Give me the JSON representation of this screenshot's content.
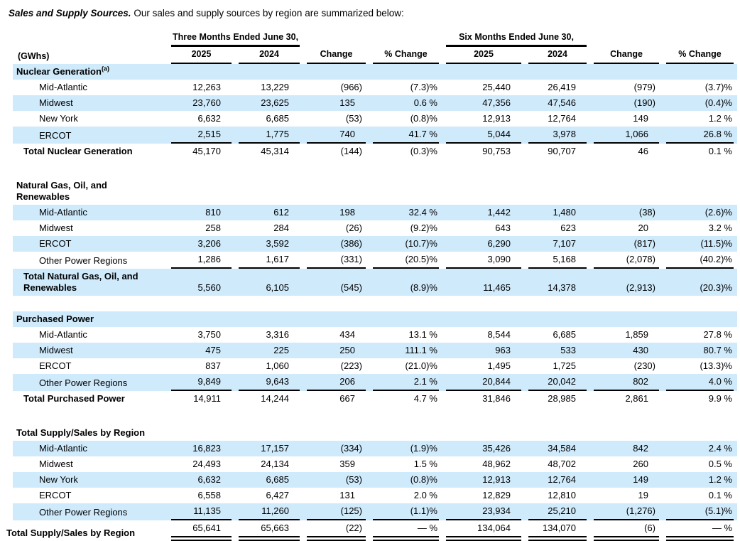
{
  "colors": {
    "stripe": "#cfeafb",
    "text": "#000000",
    "rule": "#000000"
  },
  "intro": {
    "lead": "Sales and Supply Sources.",
    "rest": " Our sales and supply sources by region are summarized below:"
  },
  "table": {
    "unit_label": "(GWhs)",
    "group_headers": [
      "Three Months Ended June 30,",
      "Six Months Ended June 30,"
    ],
    "col_headers": [
      "2025",
      "2024",
      "Change",
      "% Change",
      "2025",
      "2024",
      "Change",
      "% Change"
    ],
    "sections": [
      {
        "title": "Nuclear Generation",
        "title_sup": "(a)",
        "header_shaded": true,
        "rows": [
          {
            "label": "Mid-Atlantic",
            "shaded": false,
            "values": [
              "12,263",
              "13,229",
              "(966)",
              "(7.3)%",
              "25,440",
              "26,419",
              "(979)",
              "(3.7)%"
            ]
          },
          {
            "label": "Midwest",
            "shaded": true,
            "values": [
              "23,760",
              "23,625",
              "135",
              "0.6 %",
              "47,356",
              "47,546",
              "(190)",
              "(0.4)%"
            ]
          },
          {
            "label": "New York",
            "shaded": false,
            "values": [
              "6,632",
              "6,685",
              "(53)",
              "(0.8)%",
              "12,913",
              "12,764",
              "149",
              "1.2 %"
            ]
          },
          {
            "label": "ERCOT",
            "shaded": true,
            "values": [
              "2,515",
              "1,775",
              "740",
              "41.7 %",
              "5,044",
              "3,978",
              "1,066",
              "26.8 %"
            ]
          }
        ],
        "total": {
          "label": "Total Nuclear Generation",
          "shaded": false,
          "values": [
            "45,170",
            "45,314",
            "(144)",
            "(0.3)%",
            "90,753",
            "90,707",
            "46",
            "0.1 %"
          ]
        }
      },
      {
        "title": "Natural Gas, Oil, and\nRenewables",
        "title_sup": "",
        "header_shaded": false,
        "rows": [
          {
            "label": "Mid-Atlantic",
            "shaded": true,
            "values": [
              "810",
              "612",
              "198",
              "32.4 %",
              "1,442",
              "1,480",
              "(38)",
              "(2.6)%"
            ]
          },
          {
            "label": "Midwest",
            "shaded": false,
            "values": [
              "258",
              "284",
              "(26)",
              "(9.2)%",
              "643",
              "623",
              "20",
              "3.2 %"
            ]
          },
          {
            "label": "ERCOT",
            "shaded": true,
            "values": [
              "3,206",
              "3,592",
              "(386)",
              "(10.7)%",
              "6,290",
              "7,107",
              "(817)",
              "(11.5)%"
            ]
          },
          {
            "label": "Other Power Regions",
            "shaded": false,
            "values": [
              "1,286",
              "1,617",
              "(331)",
              "(20.5)%",
              "3,090",
              "5,168",
              "(2,078)",
              "(40.2)%"
            ]
          }
        ],
        "total": {
          "label": "Total Natural Gas, Oil, and\nRenewables",
          "shaded": true,
          "values": [
            "5,560",
            "6,105",
            "(545)",
            "(8.9)%",
            "11,465",
            "14,378",
            "(2,913)",
            "(20.3)%"
          ]
        }
      },
      {
        "title": "Purchased Power",
        "title_sup": "",
        "header_shaded": true,
        "rows": [
          {
            "label": "Mid-Atlantic",
            "shaded": false,
            "values": [
              "3,750",
              "3,316",
              "434",
              "13.1 %",
              "8,544",
              "6,685",
              "1,859",
              "27.8 %"
            ]
          },
          {
            "label": "Midwest",
            "shaded": true,
            "values": [
              "475",
              "225",
              "250",
              "111.1 %",
              "963",
              "533",
              "430",
              "80.7 %"
            ]
          },
          {
            "label": "ERCOT",
            "shaded": false,
            "values": [
              "837",
              "1,060",
              "(223)",
              "(21.0)%",
              "1,495",
              "1,725",
              "(230)",
              "(13.3)%"
            ]
          },
          {
            "label": "Other Power Regions",
            "shaded": true,
            "values": [
              "9,849",
              "9,643",
              "206",
              "2.1 %",
              "20,844",
              "20,042",
              "802",
              "4.0 %"
            ]
          }
        ],
        "total": {
          "label": "Total Purchased Power",
          "shaded": false,
          "values": [
            "14,911",
            "14,244",
            "667",
            "4.7 %",
            "31,846",
            "28,985",
            "2,861",
            "9.9 %"
          ]
        }
      },
      {
        "title": "Total Supply/Sales by Region",
        "title_sup": "",
        "header_shaded": false,
        "rows": [
          {
            "label": "Mid-Atlantic",
            "shaded": true,
            "values": [
              "16,823",
              "17,157",
              "(334)",
              "(1.9)%",
              "35,426",
              "34,584",
              "842",
              "2.4 %"
            ]
          },
          {
            "label": "Midwest",
            "shaded": false,
            "values": [
              "24,493",
              "24,134",
              "359",
              "1.5 %",
              "48,962",
              "48,702",
              "260",
              "0.5 %"
            ]
          },
          {
            "label": "New York",
            "shaded": true,
            "values": [
              "6,632",
              "6,685",
              "(53)",
              "(0.8)%",
              "12,913",
              "12,764",
              "149",
              "1.2 %"
            ]
          },
          {
            "label": "ERCOT",
            "shaded": false,
            "values": [
              "6,558",
              "6,427",
              "131",
              "2.0 %",
              "12,829",
              "12,810",
              "19",
              "0.1 %"
            ]
          },
          {
            "label": "Other Power Regions",
            "shaded": true,
            "values": [
              "11,135",
              "11,260",
              "(125)",
              "(1.1)%",
              "23,934",
              "25,210",
              "(1,276)",
              "(5.1)%"
            ]
          }
        ],
        "total": {
          "label": "Total Supply/Sales by Region",
          "shaded": false,
          "grand": true,
          "values": [
            "65,641",
            "65,663",
            "(22)",
            "— %",
            "134,064",
            "134,070",
            "(6)",
            "— %"
          ]
        }
      }
    ]
  }
}
